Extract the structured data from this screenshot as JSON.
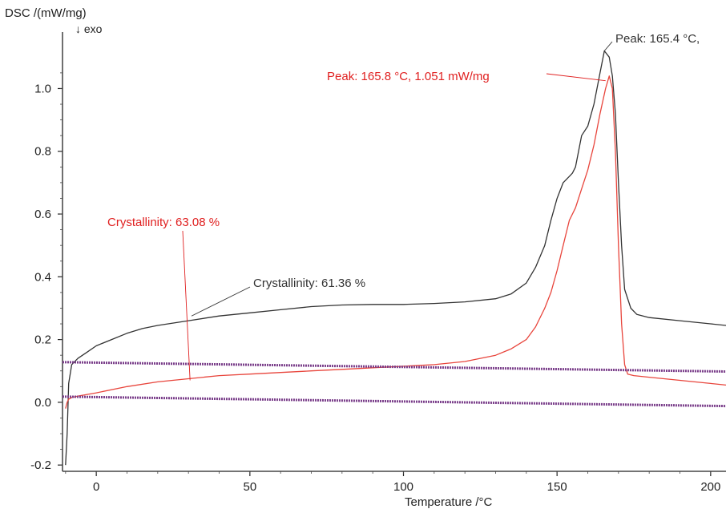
{
  "chart_data": {
    "type": "line",
    "ylabel": "DSC /(mW/mg)",
    "exo_label": "↓ exo",
    "xlabel": "Temperature /°C",
    "xlim": [
      -11,
      205
    ],
    "ylim": [
      -0.22,
      1.18
    ],
    "x_ticks": [
      0,
      50,
      100,
      150,
      200
    ],
    "y_ticks": [
      -0.2,
      0.0,
      0.2,
      0.4,
      0.6,
      0.8,
      1.0
    ],
    "colors": {
      "black_curve": "#333333",
      "red_curve": "#e8453c",
      "baseline": "#7a3e8a",
      "annotation_black": "#333333",
      "annotation_red": "#e02020"
    },
    "series": [
      {
        "color": "#333333",
        "x": [
          -10,
          -9.5,
          -9,
          -8,
          -6,
          -3,
          0,
          5,
          10,
          15,
          20,
          30,
          40,
          50,
          60,
          70,
          80,
          90,
          100,
          110,
          120,
          130,
          135,
          140,
          143,
          146,
          148,
          150,
          152,
          154,
          155,
          156,
          158,
          160,
          162,
          164,
          165.4,
          167,
          168,
          169,
          170,
          171,
          172,
          174,
          176,
          180,
          190,
          200,
          205
        ],
        "y": [
          -0.2,
          -0.1,
          0.06,
          0.12,
          0.14,
          0.16,
          0.18,
          0.2,
          0.22,
          0.235,
          0.245,
          0.26,
          0.275,
          0.285,
          0.295,
          0.305,
          0.31,
          0.312,
          0.312,
          0.315,
          0.32,
          0.33,
          0.345,
          0.38,
          0.43,
          0.5,
          0.58,
          0.65,
          0.7,
          0.72,
          0.73,
          0.75,
          0.85,
          0.88,
          0.95,
          1.05,
          1.12,
          1.1,
          1.04,
          0.92,
          0.7,
          0.5,
          0.36,
          0.3,
          0.28,
          0.27,
          0.26,
          0.25,
          0.245
        ]
      },
      {
        "color": "#e8453c",
        "x": [
          -10,
          -9.5,
          -9,
          -8,
          -6,
          -3,
          0,
          10,
          20,
          30,
          40,
          50,
          60,
          70,
          80,
          90,
          100,
          110,
          120,
          130,
          135,
          140,
          143,
          146,
          148,
          150,
          152,
          154,
          156,
          158,
          160,
          162,
          164,
          165.8,
          167,
          168,
          169,
          170,
          171,
          172,
          173,
          175,
          180,
          190,
          200,
          205
        ],
        "y": [
          -0.02,
          0.0,
          0.01,
          0.015,
          0.02,
          0.025,
          0.03,
          0.05,
          0.065,
          0.075,
          0.085,
          0.09,
          0.095,
          0.1,
          0.105,
          0.11,
          0.115,
          0.12,
          0.13,
          0.15,
          0.17,
          0.2,
          0.24,
          0.3,
          0.35,
          0.42,
          0.5,
          0.58,
          0.62,
          0.68,
          0.74,
          0.82,
          0.92,
          1.0,
          1.04,
          1.0,
          0.8,
          0.5,
          0.25,
          0.12,
          0.09,
          0.085,
          0.08,
          0.07,
          0.06,
          0.055
        ]
      },
      {
        "color": "#7a3e8a",
        "x": [
          -11,
          205
        ],
        "y": [
          0.128,
          0.098
        ]
      },
      {
        "color": "#7a3e8a",
        "x": [
          -11,
          205
        ],
        "y": [
          0.018,
          -0.012
        ]
      }
    ],
    "annotations": [
      {
        "text": "Peak: 165.4 °C,",
        "color": "#333333",
        "x": 165.4,
        "y": 1.12
      },
      {
        "text": "Peak: 165.8 °C, 1.051 mW/mg",
        "color": "#e02020",
        "x": 165.8,
        "y": 1.03
      },
      {
        "text": "Crystallinity: 63.08 %",
        "color": "#e02020",
        "x": 30,
        "y": 0.07
      },
      {
        "text": "Crystallinity: 61.36 %",
        "color": "#333333",
        "x": 31,
        "y": 0.275
      }
    ]
  }
}
